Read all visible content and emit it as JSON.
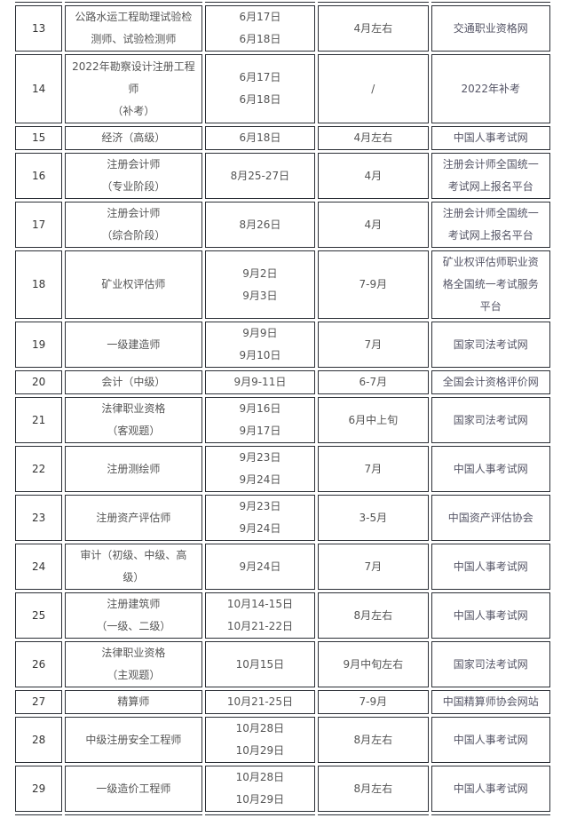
{
  "table": {
    "rows": [
      {
        "no": "13",
        "exam": [
          "公路水运工程助理试验检",
          "测师、试验检测师"
        ],
        "date": [
          "6月17日",
          "6月18日"
        ],
        "signup": [
          "4月左右"
        ],
        "site": [
          "交通职业资格网"
        ]
      },
      {
        "no": "14",
        "exam": [
          "2022年勘察设计注册工程",
          "师",
          "（补考）"
        ],
        "date": [
          "6月17日",
          "6月18日"
        ],
        "signup": [
          "/"
        ],
        "site": [
          "2022年补考"
        ]
      },
      {
        "no": "15",
        "exam": [
          "经济（高级）"
        ],
        "date": [
          "6月18日"
        ],
        "signup": [
          "4月左右"
        ],
        "site": [
          "中国人事考试网"
        ]
      },
      {
        "no": "16",
        "exam": [
          "注册会计师",
          "（专业阶段）"
        ],
        "date": [
          "8月25-27日"
        ],
        "signup": [
          "4月"
        ],
        "site": [
          "注册会计师全国统一",
          "考试网上报名平台"
        ]
      },
      {
        "no": "17",
        "exam": [
          "注册会计师",
          "（综合阶段）"
        ],
        "date": [
          "8月26日"
        ],
        "signup": [
          "4月"
        ],
        "site": [
          "注册会计师全国统一",
          "考试网上报名平台"
        ]
      },
      {
        "no": "18",
        "exam": [
          "矿业权评估师"
        ],
        "date": [
          "9月2日",
          "9月3日"
        ],
        "signup": [
          "7-9月"
        ],
        "site": [
          "矿业权评估师职业资",
          "格全国统一考试服务",
          "平台"
        ]
      },
      {
        "no": "19",
        "exam": [
          "一级建造师"
        ],
        "date": [
          "9月9日",
          "9月10日"
        ],
        "signup": [
          "7月"
        ],
        "site": [
          "国家司法考试网"
        ]
      },
      {
        "no": "20",
        "exam": [
          "会计（中级）"
        ],
        "date": [
          "9月9-11日"
        ],
        "signup": [
          "6-7月"
        ],
        "site": [
          "全国会计资格评价网"
        ]
      },
      {
        "no": "21",
        "exam": [
          "法律职业资格",
          "（客观题）"
        ],
        "date": [
          "9月16日",
          "9月17日"
        ],
        "signup": [
          "6月中上旬"
        ],
        "site": [
          "国家司法考试网"
        ]
      },
      {
        "no": "22",
        "exam": [
          "注册测绘师"
        ],
        "date": [
          "9月23日",
          "9月24日"
        ],
        "signup": [
          "7月"
        ],
        "site": [
          "中国人事考试网"
        ]
      },
      {
        "no": "23",
        "exam": [
          "注册资产评估师"
        ],
        "date": [
          "9月23日",
          "9月24日"
        ],
        "signup": [
          "3-5月"
        ],
        "site": [
          "中国资产评估协会"
        ]
      },
      {
        "no": "24",
        "exam": [
          "审计（初级、中级、高",
          "级）"
        ],
        "date": [
          "9月24日"
        ],
        "signup": [
          "7月"
        ],
        "site": [
          "中国人事考试网"
        ]
      },
      {
        "no": "25",
        "exam": [
          "注册建筑师",
          "（一级、二级）"
        ],
        "date": [
          "10月14-15日",
          "10月21-22日"
        ],
        "signup": [
          "8月左右"
        ],
        "site": [
          "中国人事考试网"
        ]
      },
      {
        "no": "26",
        "exam": [
          "法律职业资格",
          "（主观题）"
        ],
        "date": [
          "10月15日"
        ],
        "signup": [
          "9月中旬左右"
        ],
        "site": [
          "国家司法考试网"
        ]
      },
      {
        "no": "27",
        "exam": [
          "精算师"
        ],
        "date": [
          "10月21-25日"
        ],
        "signup": [
          "7-9月"
        ],
        "site": [
          "中国精算师协会网站"
        ]
      },
      {
        "no": "28",
        "exam": [
          "中级注册安全工程师"
        ],
        "date": [
          "10月28日",
          "10月29日"
        ],
        "signup": [
          "8月左右"
        ],
        "site": [
          "中国人事考试网"
        ]
      },
      {
        "no": "29",
        "exam": [
          "一级造价工程师"
        ],
        "date": [
          "10月28日",
          "10月29日"
        ],
        "signup": [
          "8月左右"
        ],
        "site": [
          "中国人事考试网"
        ]
      }
    ]
  }
}
